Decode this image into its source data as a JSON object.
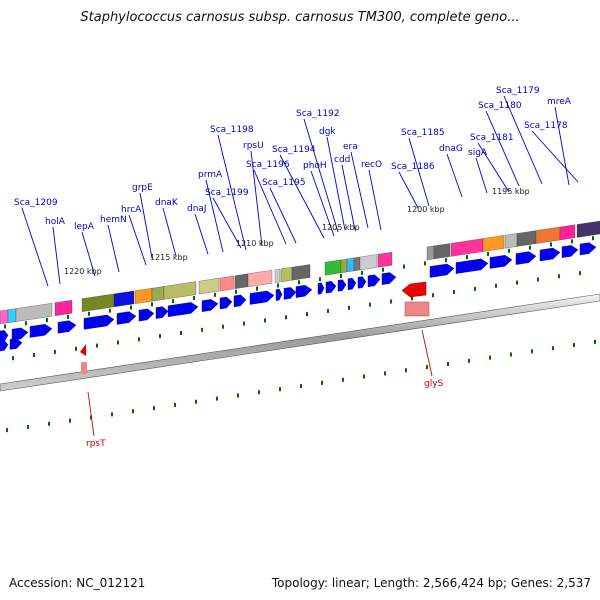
{
  "header": {
    "title": "Staphylococcus carnosus subsp. carnosus TM300, complete geno..."
  },
  "footer": {
    "accession": "Accession: NC_012121",
    "topology": "Topology: linear; Length: 2,566,424 bp; Genes: 2,537"
  },
  "scale_labels": [
    {
      "id": "1220",
      "text": "1220 kbp"
    },
    {
      "id": "1215",
      "text": "1215 kbp"
    },
    {
      "id": "1210",
      "text": "1210 kbp"
    },
    {
      "id": "1205",
      "text": "1205 kbp"
    },
    {
      "id": "1200",
      "text": "1200 kbp"
    },
    {
      "id": "1195",
      "text": "1195 kbp"
    }
  ],
  "gene_labels_forward": [
    "Sca_1209",
    "holA",
    "lepA",
    "hemN",
    "hrcA",
    "grpE",
    "dnaK",
    "dnaJ",
    "prmA",
    "Sca_1199",
    "Sca_1198",
    "rpsU",
    "Sca_1196",
    "Sca_1195",
    "Sca_1194",
    "phoH",
    "Sca_1192",
    "dgk",
    "cdd",
    "era",
    "recO",
    "Sca_1186",
    "Sca_1185",
    "dnaG",
    "sigA",
    "Sca_1181",
    "Sca_1180",
    "Sca_1179",
    "mreA",
    "Sca_1178"
  ],
  "gene_labels_reverse": [
    "rpsT",
    "glyS"
  ],
  "colors": {
    "gene_label": "#0000cc",
    "reverse_label": "#cc0000",
    "forward_arrow": "#0000ee",
    "reverse_arrow": "#ee0000",
    "tick": "#006600",
    "track": "#777777"
  }
}
